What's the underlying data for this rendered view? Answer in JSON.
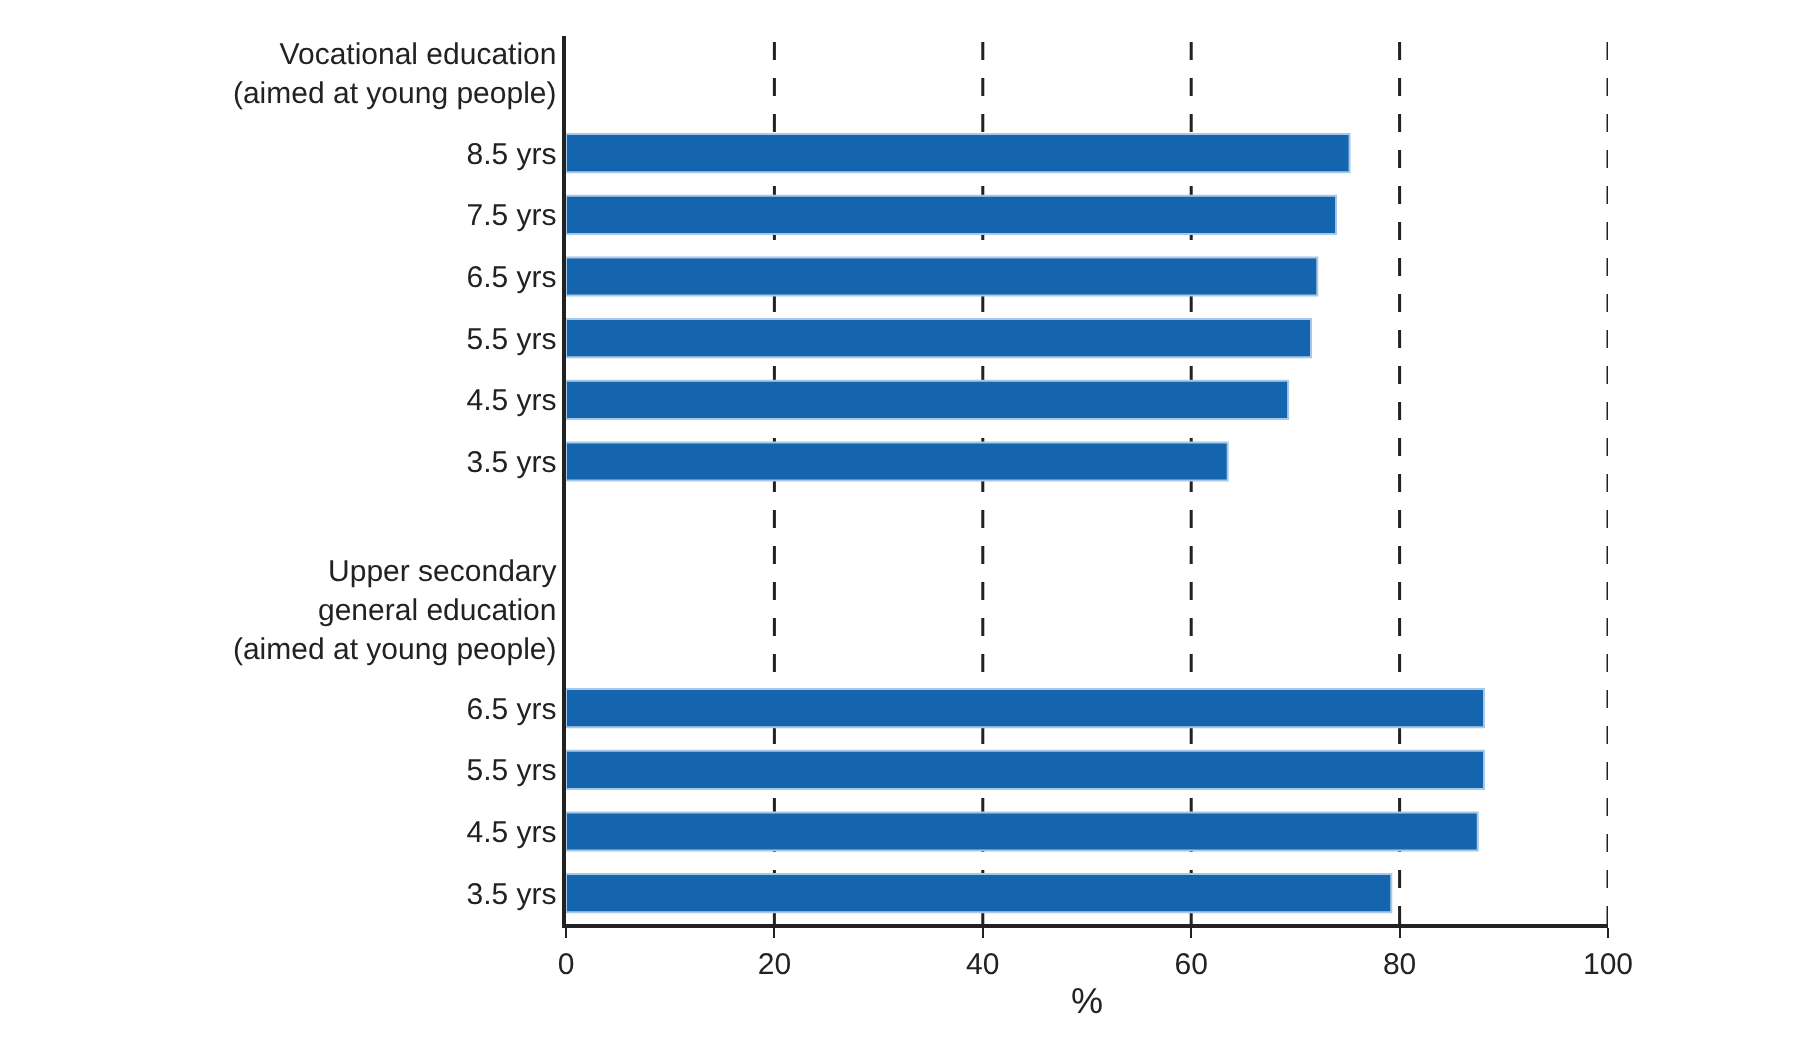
{
  "chart_data": {
    "type": "bar",
    "orientation": "horizontal",
    "xlabel": "%",
    "categories": [
      "Vocational education\n(aimed at young people)",
      "8.5 yrs",
      "7.5 yrs",
      "6.5 yrs",
      "5.5 yrs",
      "4.5 yrs",
      "3.5 yrs",
      null,
      null,
      "Upper secondary\ngeneral education\n(aimed at young people)",
      "6.5 yrs",
      "5.5 yrs",
      "4.5 yrs",
      "3.5 yrs"
    ],
    "values": [
      null,
      75.2,
      73.9,
      72.1,
      71.5,
      69.3,
      63.5,
      null,
      null,
      null,
      88.1,
      88.1,
      87.5,
      79.2
    ],
    "color": "#1565ae",
    "xlim": [
      0,
      100
    ],
    "xticks": [
      0,
      20,
      40,
      60,
      80,
      100
    ],
    "grid": "x"
  }
}
